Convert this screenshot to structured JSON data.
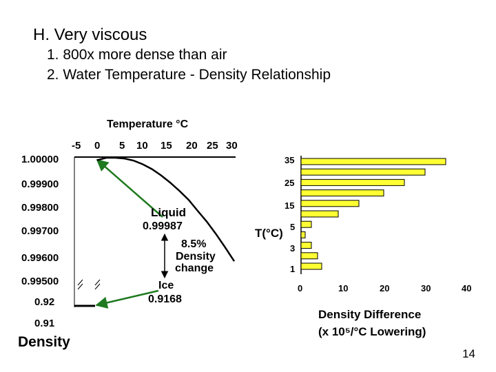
{
  "slide": {
    "heading": "H.  Very viscous",
    "items": [
      "1.  800x more dense than air",
      "2.  Water Temperature - Density Relationship"
    ],
    "page_number": "14"
  },
  "left_chart": {
    "top_axis_title": "Temperature °C",
    "top_ticks": [
      "-5",
      "0",
      "5",
      "10",
      "15",
      "20",
      "25",
      "30"
    ],
    "y_ticks": [
      "1.00000",
      "0.99900",
      "0.99800",
      "0.99700",
      "0.99600",
      "0.99500",
      "0.92",
      "0.91"
    ],
    "y_title": "Density",
    "liquid_label": "Liquid",
    "liquid_value": "0.99987",
    "change_pct": "8.5%",
    "change_l1": "Density",
    "change_l2": "change",
    "ice_label": "Ice",
    "ice_value": "0.9168"
  },
  "right_chart": {
    "y_title": "T(°C)",
    "y_ticks": [
      "35",
      "25",
      "15",
      "5",
      "3",
      "1"
    ],
    "x_ticks": [
      "0",
      "10",
      "20",
      "30",
      "40"
    ],
    "x_title_l1": "Density Difference",
    "x_title_l2": "(x 10⁵/°C Lowering)"
  },
  "chart_data": [
    {
      "type": "line",
      "x": [
        0,
        2,
        4,
        6,
        8,
        10,
        12,
        14,
        16,
        18,
        20,
        22,
        24,
        26,
        28,
        30
      ],
      "y": [
        0.99987,
        0.99997,
        0.99997,
        0.99994,
        0.99985,
        0.9997,
        0.9995,
        0.99924,
        0.99894,
        0.9986,
        0.99823,
        0.99777,
        0.99732,
        0.99681,
        0.99626,
        0.99568
      ],
      "xlim": [
        -5,
        30
      ],
      "annotations": {
        "liquid_density": 0.99987,
        "ice_density": 0.9168,
        "density_change_pct": 8.5
      }
    },
    {
      "type": "bar",
      "orientation": "horizontal",
      "values": [
        35,
        30,
        25,
        20,
        14,
        9,
        2.5,
        1,
        2.5,
        4,
        5
      ],
      "xlim": [
        0,
        40
      ]
    }
  ]
}
